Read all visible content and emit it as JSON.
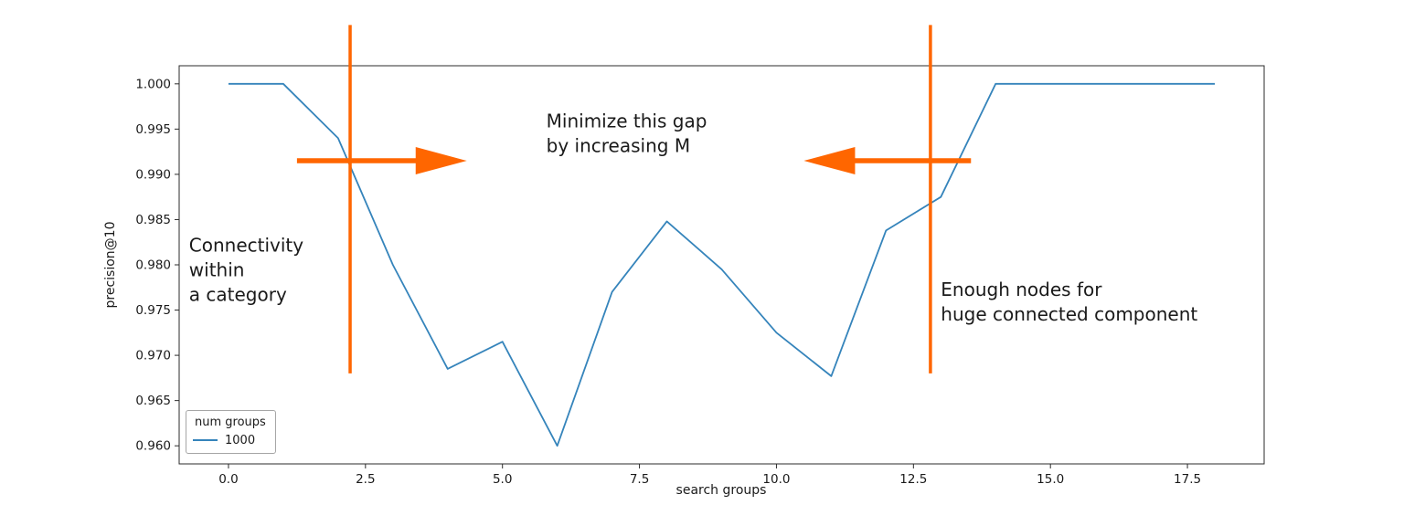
{
  "chart_data": {
    "type": "line",
    "title": "",
    "xlabel": "search groups",
    "ylabel": "precision@10",
    "xlim": [
      -0.9,
      18.9
    ],
    "ylim": [
      0.958,
      1.002
    ],
    "grid": false,
    "legend_title": "num groups",
    "legend_position": "lower left",
    "xticks": [
      0.0,
      2.5,
      5.0,
      7.5,
      10.0,
      12.5,
      15.0,
      17.5
    ],
    "xtick_labels": [
      "0.0",
      "2.5",
      "5.0",
      "7.5",
      "10.0",
      "12.5",
      "15.0",
      "17.5"
    ],
    "yticks": [
      0.96,
      0.965,
      0.97,
      0.975,
      0.98,
      0.985,
      0.99,
      0.995,
      1.0
    ],
    "ytick_labels": [
      "0.960",
      "0.965",
      "0.970",
      "0.975",
      "0.980",
      "0.985",
      "0.990",
      "0.995",
      "1.000"
    ],
    "series": [
      {
        "name": "1000",
        "color": "#3584bb",
        "x": [
          0,
          1,
          2,
          3,
          4,
          5,
          6,
          7,
          8,
          9,
          10,
          11,
          12,
          13,
          14,
          15,
          16,
          17,
          18
        ],
        "y": [
          1.0,
          1.0,
          0.994,
          0.98,
          0.9685,
          0.9715,
          0.96,
          0.977,
          0.9848,
          0.9795,
          0.9725,
          0.9677,
          0.9838,
          0.9875,
          1.0,
          1.0,
          1.0,
          1.0,
          1.0
        ]
      }
    ],
    "annotations": {
      "color": "#ff6600",
      "vlines": [
        {
          "x": 2.22,
          "y1": 0.968,
          "y2": 1.0065
        },
        {
          "x": 12.81,
          "y1": 0.968,
          "y2": 1.0065
        }
      ],
      "arrows": [
        {
          "x1": 1.25,
          "x2": 4.35,
          "y": 0.9915,
          "dir": "right"
        },
        {
          "x1": 13.55,
          "x2": 10.5,
          "y": 0.9915,
          "dir": "left"
        }
      ],
      "texts": [
        {
          "id": "gap",
          "text": "Minimize this gap\nby increasing M",
          "x": 5.8,
          "y": 0.9972
        },
        {
          "id": "connectivity",
          "text": "Connectivity\n within\na category",
          "x": -0.72,
          "y": 0.9835
        },
        {
          "id": "enough-nodes",
          "text": "Enough nodes for\nhuge connected component",
          "x": 13.0,
          "y": 0.9786
        }
      ]
    }
  }
}
